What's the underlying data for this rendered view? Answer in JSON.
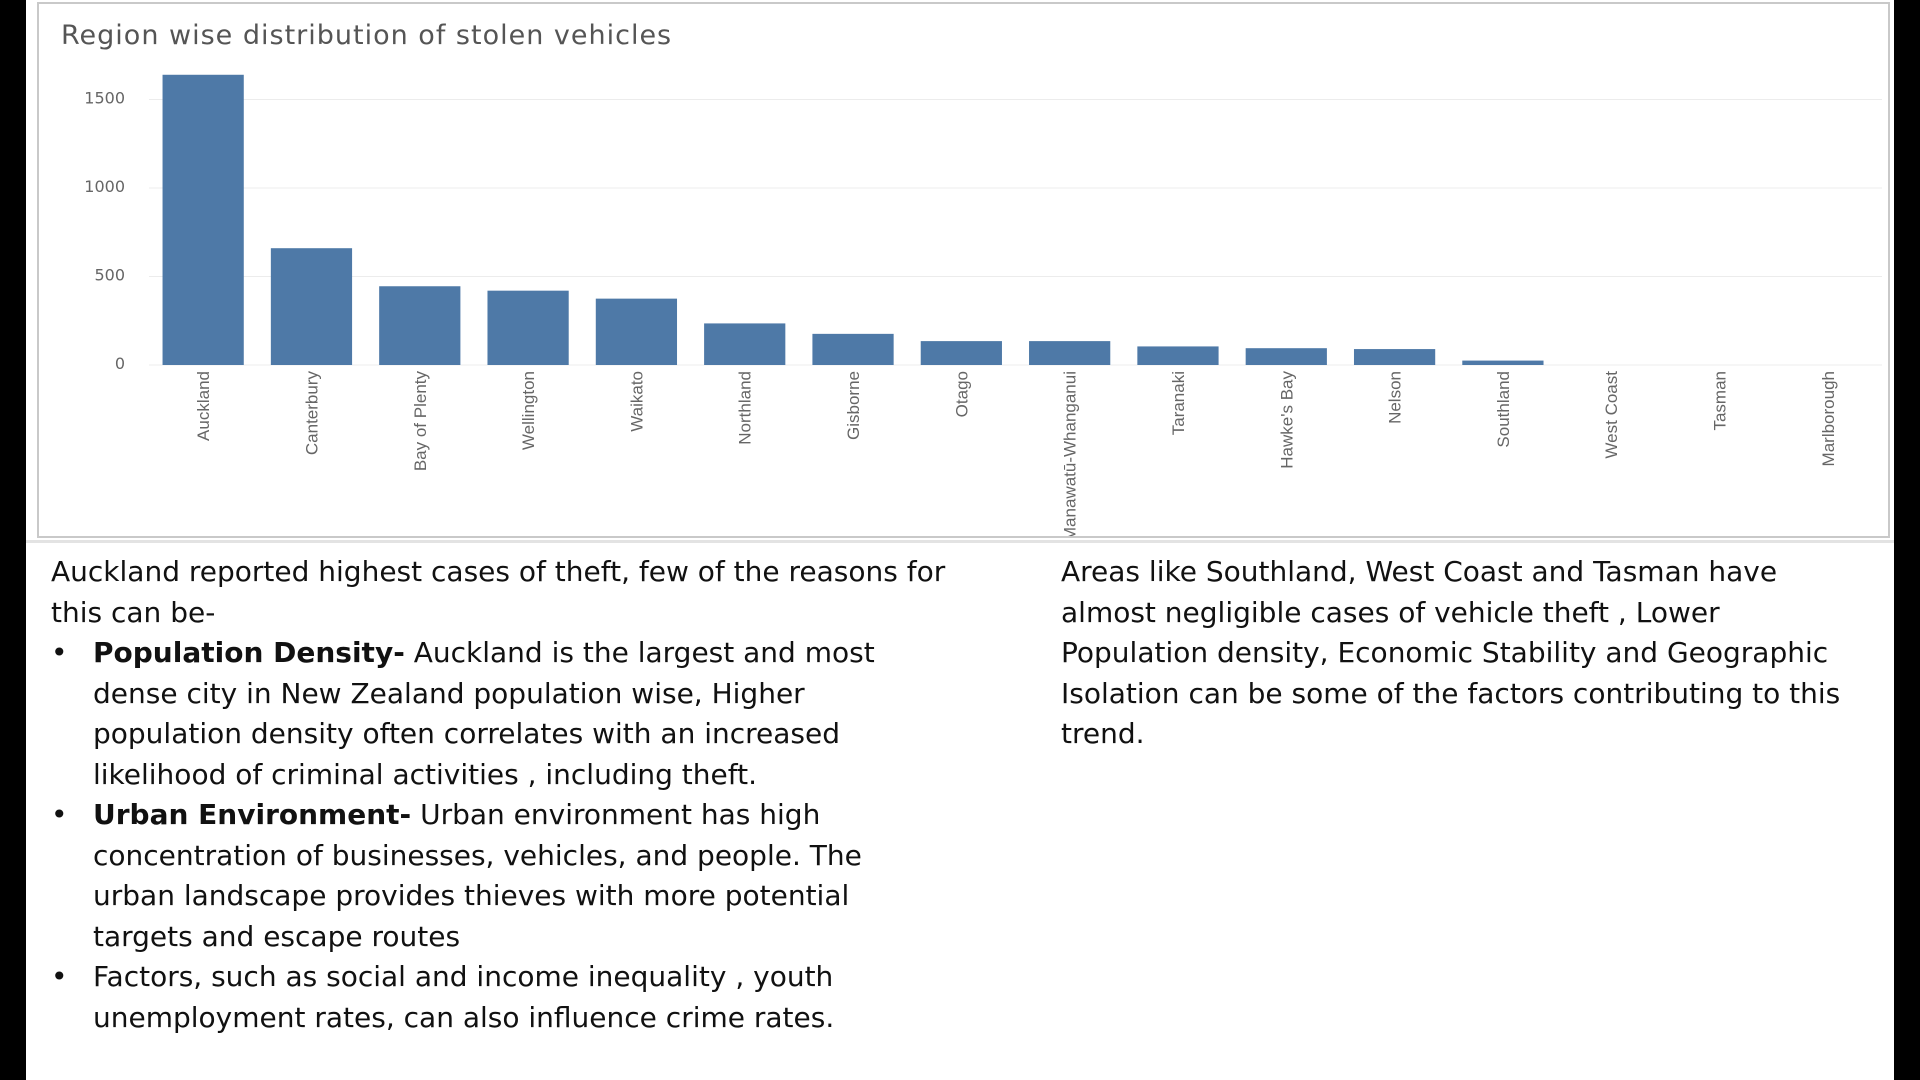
{
  "chart_data": {
    "type": "bar",
    "title": "Region wise distribution of stolen vehicles",
    "xlabel": "",
    "ylabel": "",
    "categories": [
      "Auckland",
      "Canterbury",
      "Bay of Plenty",
      "Wellington",
      "Waikato",
      "Northland",
      "Gisborne",
      "Otago",
      "Manawatū-Whanganui",
      "Taranaki",
      "Hawke's Bay",
      "Nelson",
      "Southland",
      "West Coast",
      "Tasman",
      "Marlborough"
    ],
    "values": [
      1640,
      660,
      445,
      420,
      375,
      235,
      176,
      135,
      135,
      105,
      95,
      90,
      25,
      0,
      0,
      0
    ],
    "yticks": [
      "0",
      "500",
      "1000",
      "1500"
    ],
    "ylim": [
      0,
      1650
    ],
    "grid": true,
    "legend": "none",
    "bar_color": "#4e79a7"
  },
  "left_text": {
    "intro": "Auckland reported highest cases of theft, few of the reasons for this can be-",
    "bullets": [
      {
        "bold": "Population Density-",
        "text": " Auckland is the largest and most dense city in New Zealand population wise, Higher population density often correlates with an increased likelihood of criminal activities , including theft."
      },
      {
        "bold": "Urban Environment-",
        "text": " Urban environment has high concentration of businesses, vehicles, and people. The urban landscape provides thieves with more potential targets and escape routes"
      },
      {
        "bold": "",
        "text": "Factors, such as social and income inequality , youth unemployment rates, can also influence crime rates."
      }
    ]
  },
  "right_text": "Areas like Southland, West Coast and Tasman have almost negligible cases of vehicle theft , Lower Population density, Economic Stability and Geographic Isolation can be some of the factors contributing to this trend.",
  "bullet_char": "•"
}
